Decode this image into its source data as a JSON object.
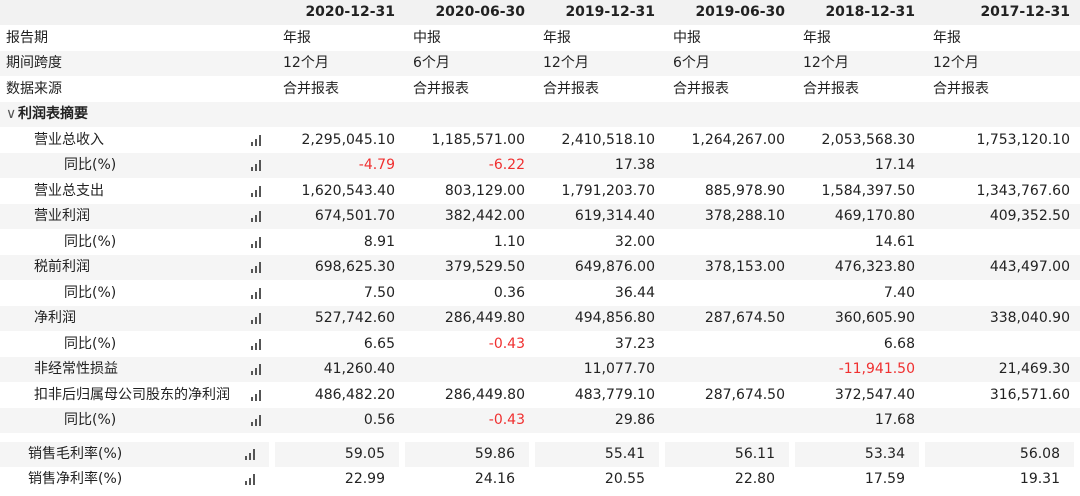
{
  "header": {
    "periods": [
      "2020-12-31",
      "2020-06-30",
      "2019-12-31",
      "2019-06-30",
      "2018-12-31",
      "2017-12-31"
    ]
  },
  "meta_rows": [
    {
      "label": "报告期",
      "values": [
        "年报",
        "中报",
        "年报",
        "中报",
        "年报",
        "年报"
      ]
    },
    {
      "label": "期间跨度",
      "values": [
        "12个月",
        "6个月",
        "12个月",
        "6个月",
        "12个月",
        "12个月"
      ]
    },
    {
      "label": "数据来源",
      "values": [
        "合并报表",
        "合并报表",
        "合并报表",
        "合并报表",
        "合并报表",
        "合并报表"
      ]
    }
  ],
  "section": {
    "chevron": "∨",
    "label": "利润表摘要"
  },
  "rows": [
    {
      "label": "营业总收入",
      "indent": 1,
      "values": [
        "2,295,045.10",
        "1,185,571.00",
        "2,410,518.10",
        "1,264,267.00",
        "2,053,568.30",
        "1,753,120.10"
      ],
      "neg": []
    },
    {
      "label": "同比(%)",
      "indent": 2,
      "values": [
        "-4.79",
        "-6.22",
        "17.38",
        "",
        "17.14",
        ""
      ],
      "neg": [
        0,
        1
      ]
    },
    {
      "label": "营业总支出",
      "indent": 1,
      "values": [
        "1,620,543.40",
        "803,129.00",
        "1,791,203.70",
        "885,978.90",
        "1,584,397.50",
        "1,343,767.60"
      ],
      "neg": []
    },
    {
      "label": "营业利润",
      "indent": 1,
      "values": [
        "674,501.70",
        "382,442.00",
        "619,314.40",
        "378,288.10",
        "469,170.80",
        "409,352.50"
      ],
      "neg": []
    },
    {
      "label": "同比(%)",
      "indent": 2,
      "values": [
        "8.91",
        "1.10",
        "32.00",
        "",
        "14.61",
        ""
      ],
      "neg": []
    },
    {
      "label": "税前利润",
      "indent": 1,
      "values": [
        "698,625.30",
        "379,529.50",
        "649,876.00",
        "378,153.00",
        "476,323.80",
        "443,497.00"
      ],
      "neg": []
    },
    {
      "label": "同比(%)",
      "indent": 2,
      "values": [
        "7.50",
        "0.36",
        "36.44",
        "",
        "7.40",
        ""
      ],
      "neg": []
    },
    {
      "label": "净利润",
      "indent": 1,
      "values": [
        "527,742.60",
        "286,449.80",
        "494,856.80",
        "287,674.50",
        "360,605.90",
        "338,040.90"
      ],
      "neg": []
    },
    {
      "label": "同比(%)",
      "indent": 2,
      "values": [
        "6.65",
        "-0.43",
        "37.23",
        "",
        "6.68",
        ""
      ],
      "neg": [
        1
      ]
    },
    {
      "label": "非经常性损益",
      "indent": 1,
      "values": [
        "41,260.40",
        "",
        "11,077.70",
        "",
        "-11,941.50",
        "21,469.30"
      ],
      "neg": [
        4
      ]
    },
    {
      "label": "扣非后归属母公司股东的净利润",
      "indent": 1,
      "values": [
        "486,482.20",
        "286,449.80",
        "483,779.10",
        "287,674.50",
        "372,547.40",
        "316,571.60"
      ],
      "neg": []
    },
    {
      "label": "同比(%)",
      "indent": 2,
      "values": [
        "0.56",
        "-0.43",
        "29.86",
        "",
        "17.68",
        ""
      ],
      "neg": [
        1
      ]
    }
  ],
  "ratio_rows": [
    {
      "label": "销售毛利率(%)",
      "values": [
        "59.05",
        "59.86",
        "55.41",
        "56.11",
        "53.34",
        "56.08"
      ]
    },
    {
      "label": "销售净利率(%)",
      "values": [
        "22.99",
        "24.16",
        "20.55",
        "22.80",
        "17.59",
        "19.31"
      ]
    }
  ],
  "icons": {
    "chart": "bar-chart-icon"
  },
  "colors": {
    "header_bg": "#f2f2f2",
    "stripe_bg": "#f5f5f5",
    "negative": "#f03030"
  }
}
